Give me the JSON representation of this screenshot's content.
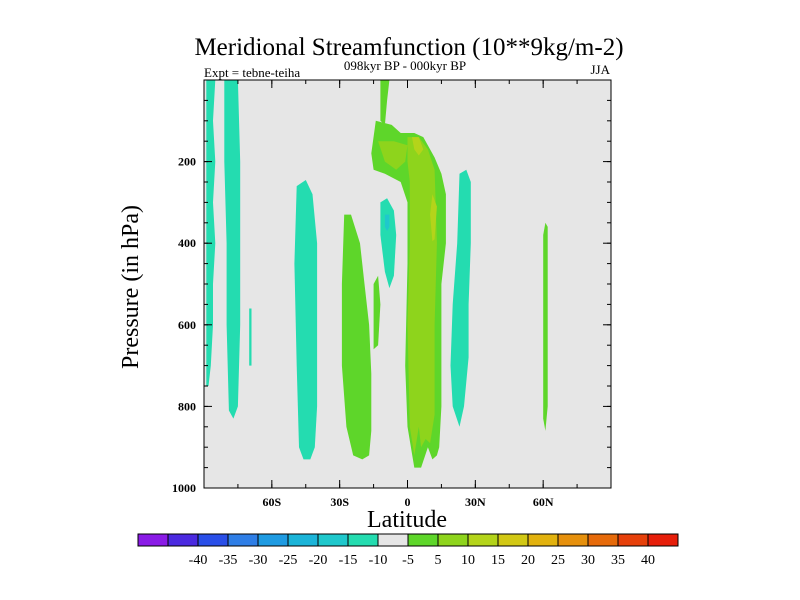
{
  "chart_data": {
    "type": "contour",
    "title": "Meridional Streamfunction (10**9kg/m-2)",
    "subtitle_left": "Expt = tebne-teiha",
    "subtitle_center": "098kyr BP - 000kyr BP",
    "subtitle_right": "JJA",
    "xlabel": "Latitude",
    "ylabel": "Pressure (in hPa)",
    "xlim": [
      -90,
      90
    ],
    "ylim": [
      1000,
      0
    ],
    "y_reversed": true,
    "x_ticks": [
      {
        "value": -60,
        "label": "60S"
      },
      {
        "value": -30,
        "label": "30S"
      },
      {
        "value": 0,
        "label": "0"
      },
      {
        "value": 30,
        "label": "30N"
      },
      {
        "value": 60,
        "label": "60N"
      }
    ],
    "y_ticks": [
      {
        "value": 200,
        "label": "200"
      },
      {
        "value": 400,
        "label": "400"
      },
      {
        "value": 600,
        "label": "600"
      },
      {
        "value": 800,
        "label": "800"
      },
      {
        "value": 1000,
        "label": "1000"
      }
    ],
    "background_color": "#e6e6e6",
    "colorbar": {
      "bins": [
        {
          "color": "#8a1be6"
        },
        {
          "color": "#4b2ae0"
        },
        {
          "color": "#2a4fe8"
        },
        {
          "color": "#2f7ee6"
        },
        {
          "color": "#1f9be2"
        },
        {
          "color": "#1bb4d8"
        },
        {
          "color": "#1fc8cc"
        },
        {
          "color": "#24dcb0"
        },
        {
          "color": "#e6e6e6"
        },
        {
          "color": "#5ed62a"
        },
        {
          "color": "#8ed41c"
        },
        {
          "color": "#b4d41a"
        },
        {
          "color": "#d2c814"
        },
        {
          "color": "#e2b20e"
        },
        {
          "color": "#e6900c"
        },
        {
          "color": "#e66a0a"
        },
        {
          "color": "#e6400a"
        },
        {
          "color": "#e61e0a"
        }
      ],
      "labels": [
        "-40",
        "-35",
        "-30",
        "-25",
        "-20",
        "-15",
        "-10",
        "-5",
        "5",
        "10",
        "15",
        "20",
        "25",
        "30",
        "35",
        "40"
      ]
    },
    "regions": [
      {
        "level": "-5",
        "color": "#24dcb0",
        "points": [
          [
            -89,
            0
          ],
          [
            -85,
            0
          ],
          [
            -86,
            100
          ],
          [
            -85,
            200
          ],
          [
            -86,
            300
          ],
          [
            -85,
            400
          ],
          [
            -86,
            500
          ],
          [
            -86,
            600
          ],
          [
            -87,
            700
          ],
          [
            -88,
            750
          ],
          [
            -89,
            750
          ]
        ]
      },
      {
        "level": "-5",
        "color": "#24dcb0",
        "points": [
          [
            -81,
            0
          ],
          [
            -75,
            0
          ],
          [
            -74,
            200
          ],
          [
            -74,
            400
          ],
          [
            -74,
            600
          ],
          [
            -75,
            800
          ],
          [
            -77,
            830
          ],
          [
            -79,
            810
          ],
          [
            -80,
            600
          ],
          [
            -80,
            400
          ],
          [
            -81,
            200
          ]
        ]
      },
      {
        "level": "-5",
        "color": "#24dcb0",
        "points": [
          [
            -70,
            560
          ],
          [
            -69,
            560
          ],
          [
            -69,
            700
          ],
          [
            -70,
            700
          ]
        ]
      },
      {
        "level": "-5",
        "color": "#24dcb0",
        "points": [
          [
            -49,
            260
          ],
          [
            -45,
            245
          ],
          [
            -42,
            280
          ],
          [
            -40,
            400
          ],
          [
            -40,
            600
          ],
          [
            -40,
            800
          ],
          [
            -41,
            900
          ],
          [
            -43,
            930
          ],
          [
            -46,
            930
          ],
          [
            -48,
            900
          ],
          [
            -49,
            700
          ],
          [
            -50,
            450
          ]
        ]
      },
      {
        "level": "-5",
        "color": "#24dcb0",
        "points": [
          [
            -12,
            300
          ],
          [
            -9,
            290
          ],
          [
            -6,
            320
          ],
          [
            -5,
            380
          ],
          [
            -6,
            480
          ],
          [
            -8,
            510
          ],
          [
            -10,
            470
          ],
          [
            -12,
            380
          ]
        ]
      },
      {
        "level": "-10",
        "color": "#1fc8cc",
        "points": [
          [
            -10,
            330
          ],
          [
            -8,
            330
          ],
          [
            -8,
            360
          ],
          [
            -9,
            370
          ],
          [
            -10,
            360
          ]
        ]
      },
      {
        "level": "-5",
        "color": "#24dcb0",
        "points": [
          [
            23,
            230
          ],
          [
            26,
            220
          ],
          [
            28,
            250
          ],
          [
            28,
            400
          ],
          [
            27,
            550
          ],
          [
            27,
            680
          ],
          [
            25,
            800
          ],
          [
            23,
            850
          ],
          [
            20,
            800
          ],
          [
            19,
            700
          ],
          [
            20,
            550
          ],
          [
            22,
            400
          ]
        ]
      },
      {
        "level": "5",
        "color": "#5ed62a",
        "points": [
          [
            -28,
            330
          ],
          [
            -25,
            330
          ],
          [
            -21,
            400
          ],
          [
            -19,
            500
          ],
          [
            -17,
            600
          ],
          [
            -16,
            720
          ],
          [
            -16,
            860
          ],
          [
            -17,
            920
          ],
          [
            -20,
            930
          ],
          [
            -24,
            920
          ],
          [
            -27,
            850
          ],
          [
            -29,
            700
          ],
          [
            -29,
            500
          ]
        ]
      },
      {
        "level": "5",
        "color": "#5ed62a",
        "points": [
          [
            -15,
            500
          ],
          [
            -13,
            480
          ],
          [
            -12,
            550
          ],
          [
            -13,
            650
          ],
          [
            -15,
            660
          ]
        ]
      },
      {
        "level": "5",
        "color": "#5ed62a",
        "points": [
          [
            -12,
            0
          ],
          [
            -8,
            0
          ],
          [
            -9,
            50
          ],
          [
            -10,
            110
          ],
          [
            -12,
            100
          ],
          [
            -12,
            50
          ]
        ]
      },
      {
        "level": "5",
        "color": "#5ed62a",
        "points": [
          [
            -16,
            180
          ],
          [
            -14,
            100
          ],
          [
            -7,
            110
          ],
          [
            -3,
            130
          ],
          [
            3,
            130
          ],
          [
            7,
            140
          ],
          [
            12,
            190
          ],
          [
            15,
            230
          ],
          [
            17,
            280
          ],
          [
            17,
            400
          ],
          [
            15,
            500
          ],
          [
            15,
            600
          ],
          [
            15,
            800
          ],
          [
            14,
            900
          ],
          [
            13,
            920
          ],
          [
            11,
            930
          ],
          [
            9,
            900
          ],
          [
            6,
            950
          ],
          [
            3,
            950
          ],
          [
            0,
            850
          ],
          [
            -1,
            700
          ],
          [
            0,
            450
          ],
          [
            0,
            300
          ],
          [
            -3,
            250
          ],
          [
            -10,
            230
          ],
          [
            -15,
            220
          ]
        ]
      },
      {
        "level": "10",
        "color": "#8ed41c",
        "points": [
          [
            -13,
            150
          ],
          [
            -6,
            150
          ],
          [
            0,
            160
          ],
          [
            -1,
            200
          ],
          [
            -5,
            220
          ],
          [
            -10,
            200
          ]
        ]
      },
      {
        "level": "10",
        "color": "#8ed41c",
        "points": [
          [
            0,
            140
          ],
          [
            5,
            140
          ],
          [
            9,
            170
          ],
          [
            12,
            220
          ],
          [
            13,
            400
          ],
          [
            12,
            600
          ],
          [
            12,
            820
          ],
          [
            10,
            890
          ],
          [
            8,
            880
          ],
          [
            6,
            900
          ],
          [
            5,
            850
          ],
          [
            3,
            920
          ],
          [
            1,
            850
          ],
          [
            0,
            600
          ],
          [
            1,
            400
          ],
          [
            1,
            250
          ],
          [
            0,
            200
          ]
        ]
      },
      {
        "level": "15",
        "color": "#b4d41a",
        "points": [
          [
            2,
            140
          ],
          [
            5,
            140
          ],
          [
            7,
            170
          ],
          [
            5,
            185
          ],
          [
            3,
            170
          ]
        ]
      },
      {
        "level": "15",
        "color": "#b4d41a",
        "points": [
          [
            11,
            280
          ],
          [
            13,
            310
          ],
          [
            12,
            390
          ],
          [
            11,
            395
          ],
          [
            10,
            330
          ]
        ]
      },
      {
        "level": "5",
        "color": "#5ed62a",
        "points": [
          [
            61,
            350
          ],
          [
            62,
            360
          ],
          [
            62,
            600
          ],
          [
            62,
            800
          ],
          [
            61,
            860
          ],
          [
            60,
            830
          ],
          [
            60,
            600
          ],
          [
            60,
            380
          ]
        ]
      }
    ]
  }
}
